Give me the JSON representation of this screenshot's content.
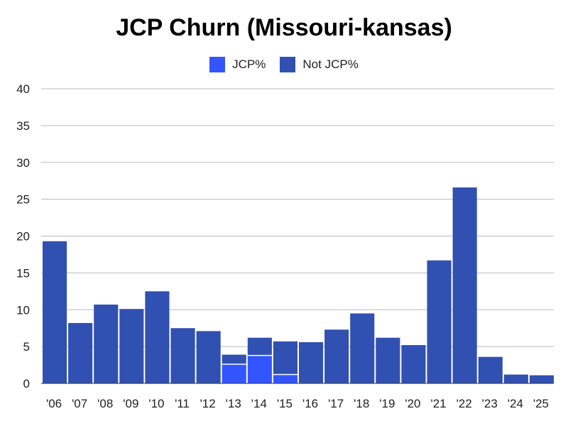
{
  "chart_data": {
    "type": "bar",
    "stacked": true,
    "title": "JCP Churn (Missouri-kansas)",
    "xlabel": "",
    "ylabel": "",
    "ylim": [
      0,
      40
    ],
    "yticks": [
      "0",
      "5",
      "10",
      "15",
      "20",
      "25",
      "30",
      "35",
      "40"
    ],
    "grid": true,
    "legend_position": "top-center",
    "categories": [
      "'06",
      "'07",
      "'08",
      "'09",
      "'10",
      "'11",
      "'12",
      "'13",
      "'14",
      "'15",
      "'16",
      "'17",
      "'18",
      "'19",
      "'20",
      "'21",
      "'22",
      "'23",
      "'24",
      "'25"
    ],
    "series": [
      {
        "name": "JCP%",
        "color": "#3355ff",
        "values": [
          0,
          0,
          0,
          0,
          0,
          0,
          0,
          2.6,
          3.8,
          1.2,
          0,
          0,
          0,
          0,
          0,
          0,
          0,
          0,
          0,
          0
        ]
      },
      {
        "name": "Not JCP%",
        "color": "#3050b2",
        "values": [
          19.3,
          8.2,
          10.7,
          10.1,
          12.5,
          7.5,
          7.1,
          1.3,
          2.4,
          4.5,
          5.6,
          7.3,
          9.5,
          6.2,
          5.2,
          16.7,
          26.6,
          3.6,
          1.2,
          1.1
        ]
      }
    ]
  }
}
